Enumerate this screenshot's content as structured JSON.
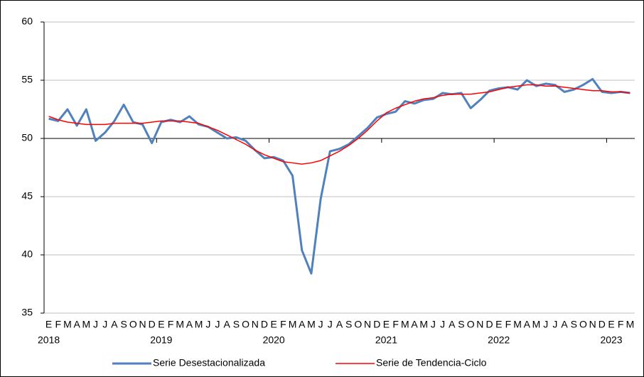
{
  "chart_data": {
    "type": "line",
    "categories": [
      "E",
      "F",
      "M",
      "A",
      "M",
      "J",
      "J",
      "A",
      "S",
      "O",
      "N",
      "D",
      "E",
      "F",
      "M",
      "A",
      "M",
      "J",
      "J",
      "A",
      "S",
      "O",
      "N",
      "D",
      "E",
      "F",
      "M",
      "A",
      "M",
      "J",
      "J",
      "A",
      "S",
      "O",
      "N",
      "D",
      "E",
      "F",
      "M",
      "A",
      "M",
      "J",
      "J",
      "A",
      "S",
      "O",
      "N",
      "D",
      "E",
      "F",
      "M",
      "A",
      "M",
      "J",
      "J",
      "A",
      "S",
      "O",
      "N",
      "D",
      "E",
      "F",
      "M"
    ],
    "groups": [
      {
        "label": "2018",
        "count": 12
      },
      {
        "label": "2019",
        "count": 12
      },
      {
        "label": "2020",
        "count": 12
      },
      {
        "label": "2021",
        "count": 12
      },
      {
        "label": "2022",
        "count": 12
      },
      {
        "label": "2023",
        "count": 3
      }
    ],
    "series": [
      {
        "name": "Serie Desestacionalizada",
        "color": "#4f81bd",
        "width": 3,
        "values": [
          51.7,
          51.5,
          52.5,
          51.1,
          52.5,
          49.8,
          50.5,
          51.5,
          52.9,
          51.4,
          51.2,
          49.6,
          51.4,
          51.6,
          51.4,
          51.9,
          51.2,
          51.0,
          50.5,
          50.0,
          50.1,
          49.8,
          49.0,
          48.3,
          48.4,
          48.1,
          46.8,
          40.4,
          38.4,
          44.8,
          48.9,
          49.1,
          49.5,
          50.2,
          50.9,
          51.8,
          52.1,
          52.3,
          53.2,
          53.0,
          53.3,
          53.4,
          53.9,
          53.8,
          53.9,
          52.6,
          53.3,
          54.1,
          54.3,
          54.4,
          54.2,
          55.0,
          54.5,
          54.7,
          54.6,
          54.0,
          54.2,
          54.6,
          55.1,
          54.0,
          53.9,
          54.0,
          53.9
        ]
      },
      {
        "name": "Serie de Tendencia-Ciclo",
        "color": "#ff0000",
        "width": 1.5,
        "values": [
          51.9,
          51.6,
          51.4,
          51.3,
          51.2,
          51.2,
          51.2,
          51.3,
          51.3,
          51.3,
          51.3,
          51.4,
          51.5,
          51.5,
          51.5,
          51.4,
          51.3,
          51.0,
          50.7,
          50.3,
          49.9,
          49.5,
          49.0,
          48.6,
          48.3,
          48.0,
          47.9,
          47.8,
          47.9,
          48.1,
          48.5,
          48.9,
          49.4,
          50.0,
          50.7,
          51.5,
          52.2,
          52.6,
          52.9,
          53.2,
          53.4,
          53.5,
          53.7,
          53.8,
          53.8,
          53.8,
          53.9,
          54.0,
          54.2,
          54.4,
          54.5,
          54.6,
          54.6,
          54.5,
          54.5,
          54.4,
          54.3,
          54.2,
          54.1,
          54.1,
          54.0,
          54.0,
          53.9
        ]
      }
    ],
    "ylim": [
      35,
      60
    ],
    "yticks": [
      35,
      40,
      45,
      50,
      55,
      60
    ],
    "x_axis_at": 50,
    "grid": true,
    "legend": "bottom"
  }
}
